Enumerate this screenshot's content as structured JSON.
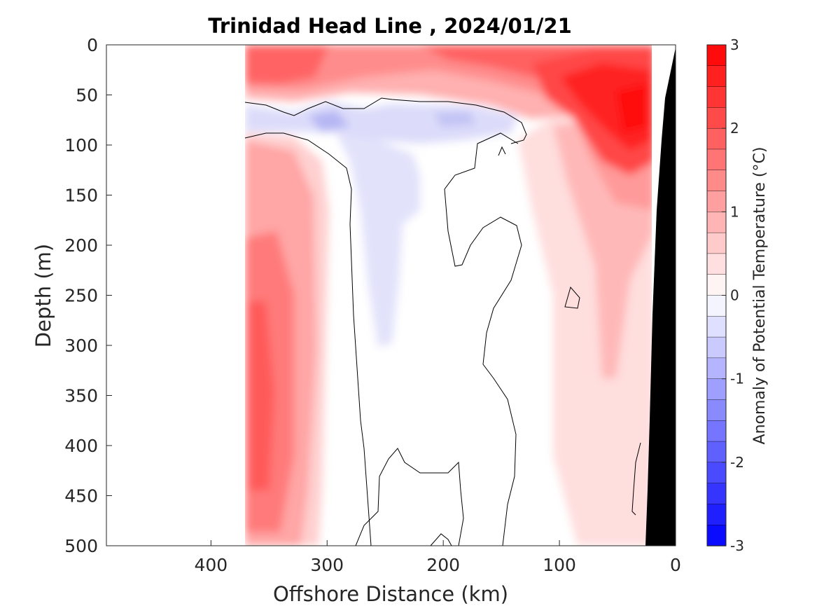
{
  "chart_data": {
    "type": "contour",
    "title": "Trinidad Head Line , 2024/01/21",
    "xlabel": "Offshore Distance (km)",
    "ylabel": "Depth (m)",
    "xlim": [
      490,
      0
    ],
    "ylim": [
      0,
      500
    ],
    "x_reversed": true,
    "y_reversed": true,
    "x_ticks": [
      400,
      300,
      200,
      100,
      0
    ],
    "y_ticks": [
      0,
      50,
      100,
      150,
      200,
      250,
      300,
      350,
      400,
      450,
      500
    ],
    "data_extent_km": [
      370,
      20
    ],
    "colorbar": {
      "label": "Anomaly of Potential Temperature (°C)",
      "range": [
        -3,
        3
      ],
      "levels_per_unit": 4,
      "ticks": [
        3,
        2,
        1,
        0,
        -1,
        -2,
        -3
      ],
      "negative_color": "#0000ff",
      "positive_color": "#ff0000",
      "zero_color": "#ffffff"
    },
    "zero_contour_color": "#000000",
    "bathymetry_color": "#000000",
    "features": [
      {
        "name": "surface-warm-layer",
        "x_range_km": [
          370,
          20
        ],
        "depth_range_m": [
          0,
          55
        ],
        "anomaly_c": 1.5
      },
      {
        "name": "nearshore-warm-core",
        "x_center_km": 40,
        "depth_center_m": 70,
        "anomaly_c": 2.8
      },
      {
        "name": "subsurface-cool-band",
        "x_range_km": [
          365,
          135
        ],
        "depth_range_m": [
          60,
          95
        ],
        "anomaly_c": -0.6
      },
      {
        "name": "cool-tongue",
        "x_center_km": 255,
        "depth_range_m": [
          95,
          300
        ],
        "anomaly_c": -0.3
      },
      {
        "name": "offshore-warm-column",
        "x_range_km": [
          370,
          310
        ],
        "depth_range_m": [
          100,
          500
        ],
        "anomaly_c": 2.0
      },
      {
        "name": "shelf-slope-warm",
        "x_range_km": [
          110,
          25
        ],
        "depth_range_m": [
          100,
          500
        ],
        "anomaly_c": 0.8
      }
    ]
  }
}
